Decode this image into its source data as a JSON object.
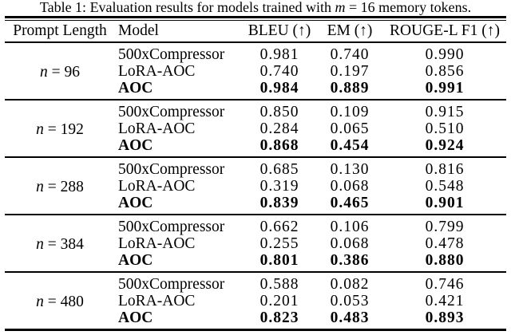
{
  "caption": {
    "prefix": "Table 1: Evaluation results for models trained with ",
    "var": "m",
    "suffix": " = 16 memory tokens."
  },
  "table": {
    "headers": [
      "Prompt Length",
      "Model",
      "BLEU (↑)",
      "EM (↑)",
      "ROUGE-L F1 (↑)"
    ],
    "groups": [
      {
        "prompt_var": "n",
        "prompt_rest": "= 96",
        "rows": [
          {
            "model": "500xCompressor",
            "bleu": "0.981",
            "em": "0.740",
            "rouge": "0.990",
            "bold": false
          },
          {
            "model": "LoRA-AOC",
            "bleu": "0.740",
            "em": "0.197",
            "rouge": "0.856",
            "bold": false
          },
          {
            "model": "AOC",
            "bleu": "0.984",
            "em": "0.889",
            "rouge": "0.991",
            "bold": true
          }
        ]
      },
      {
        "prompt_var": "n",
        "prompt_rest": "= 192",
        "rows": [
          {
            "model": "500xCompressor",
            "bleu": "0.850",
            "em": "0.109",
            "rouge": "0.915",
            "bold": false
          },
          {
            "model": "LoRA-AOC",
            "bleu": "0.284",
            "em": "0.065",
            "rouge": "0.510",
            "bold": false
          },
          {
            "model": "AOC",
            "bleu": "0.868",
            "em": "0.454",
            "rouge": "0.924",
            "bold": true
          }
        ]
      },
      {
        "prompt_var": "n",
        "prompt_rest": "= 288",
        "rows": [
          {
            "model": "500xCompressor",
            "bleu": "0.685",
            "em": "0.130",
            "rouge": "0.816",
            "bold": false
          },
          {
            "model": "LoRA-AOC",
            "bleu": "0.319",
            "em": "0.068",
            "rouge": "0.548",
            "bold": false
          },
          {
            "model": "AOC",
            "bleu": "0.839",
            "em": "0.465",
            "rouge": "0.901",
            "bold": true
          }
        ]
      },
      {
        "prompt_var": "n",
        "prompt_rest": "= 384",
        "rows": [
          {
            "model": "500xCompressor",
            "bleu": "0.662",
            "em": "0.106",
            "rouge": "0.799",
            "bold": false
          },
          {
            "model": "LoRA-AOC",
            "bleu": "0.255",
            "em": "0.068",
            "rouge": "0.478",
            "bold": false
          },
          {
            "model": "AOC",
            "bleu": "0.801",
            "em": "0.386",
            "rouge": "0.880",
            "bold": true
          }
        ]
      },
      {
        "prompt_var": "n",
        "prompt_rest": "= 480",
        "rows": [
          {
            "model": "500xCompressor",
            "bleu": "0.588",
            "em": "0.082",
            "rouge": "0.746",
            "bold": false
          },
          {
            "model": "LoRA-AOC",
            "bleu": "0.201",
            "em": "0.053",
            "rouge": "0.421",
            "bold": false
          },
          {
            "model": "AOC",
            "bleu": "0.823",
            "em": "0.483",
            "rouge": "0.893",
            "bold": true
          }
        ]
      }
    ]
  },
  "colors": {
    "text": "#000000",
    "background": "#ffffff",
    "rule": "#000000"
  }
}
